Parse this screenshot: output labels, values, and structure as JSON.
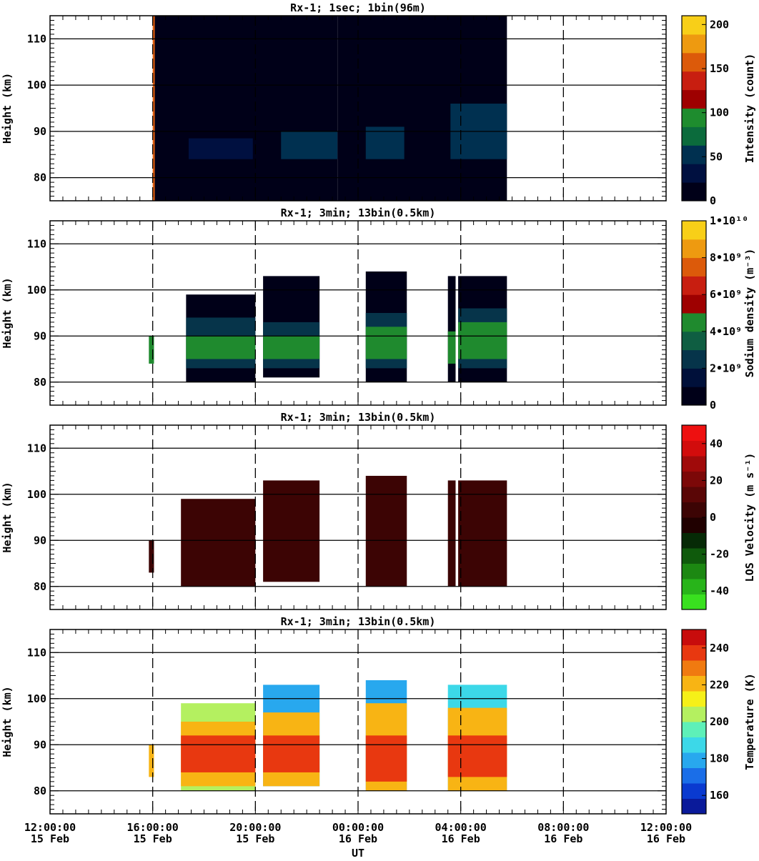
{
  "chart_data": [
    {
      "type": "heatmap",
      "title": "Rx-1;  1sec; 1bin(96m)",
      "ylabel": "Height (km)",
      "ylim": [
        75,
        115
      ],
      "yticks": [
        "80",
        "90",
        "100",
        "110"
      ],
      "colorbar": {
        "label": "Intensity (count)",
        "range": [
          0,
          210
        ],
        "ticks": [
          "0",
          "50",
          "100",
          "150",
          "200"
        ],
        "colors": [
          "#000018",
          "#001040",
          "#003050",
          "#0b6b3c",
          "#1e8c2e",
          "#9e0000",
          "#c81e10",
          "#dc5a0a",
          "#ee9a10",
          "#f8cf18"
        ]
      },
      "segments": [
        {
          "x0": 16.0,
          "x1": 16.08,
          "h0": 75,
          "h1": 115,
          "value": 150
        },
        {
          "x0": 16.08,
          "x1": 23.2,
          "h0": 75,
          "h1": 115,
          "value": 6
        },
        {
          "x0": 17.4,
          "x1": 19.9,
          "h0": 84,
          "h1": 88.5,
          "value": 40
        },
        {
          "x0": 21.0,
          "x1": 23.2,
          "h0": 84,
          "h1": 90,
          "value": 55
        },
        {
          "x0": 23.2,
          "x1": 29.8,
          "h0": 75,
          "h1": 115,
          "value": 6
        },
        {
          "x0": 24.3,
          "x1": 25.8,
          "h0": 84,
          "h1": 91,
          "value": 60
        },
        {
          "x0": 27.6,
          "x1": 29.8,
          "h0": 84,
          "h1": 96,
          "value": 55
        }
      ]
    },
    {
      "type": "heatmap",
      "title": "Rx-1; 3min; 13bin(0.5km)",
      "ylabel": "Height (km)",
      "ylim": [
        75,
        115
      ],
      "yticks": [
        "80",
        "90",
        "100",
        "110"
      ],
      "colorbar": {
        "label": "Sodium density (m⁻³)",
        "range": [
          0,
          10000000000.0
        ],
        "ticks": [
          "0",
          "2•10⁹",
          "4•10⁹",
          "6•10⁹",
          "8•10⁹",
          "1•10¹⁰"
        ],
        "colors": [
          "#000018",
          "#00103a",
          "#06344a",
          "#0f5e42",
          "#1f8a2e",
          "#9e0000",
          "#c81e10",
          "#dc5a0a",
          "#ee9a10",
          "#f8cf18"
        ]
      },
      "segments": [
        {
          "x0": 15.85,
          "x1": 16.05,
          "h0": 84,
          "h1": 90,
          "value": 4500000000.0
        },
        {
          "x0": 17.3,
          "x1": 20.0,
          "h0": 80,
          "h1": 99,
          "value": 600000000.0
        },
        {
          "x0": 17.3,
          "x1": 20.0,
          "h0": 83,
          "h1": 94,
          "value": 2600000000.0
        },
        {
          "x0": 17.3,
          "x1": 20.0,
          "h0": 85,
          "h1": 90,
          "value": 4300000000.0
        },
        {
          "x0": 20.3,
          "x1": 22.5,
          "h0": 81,
          "h1": 103,
          "value": 600000000.0
        },
        {
          "x0": 20.3,
          "x1": 22.5,
          "h0": 83,
          "h1": 93,
          "value": 2600000000.0
        },
        {
          "x0": 20.3,
          "x1": 22.5,
          "h0": 85,
          "h1": 90,
          "value": 4300000000.0
        },
        {
          "x0": 24.3,
          "x1": 25.9,
          "h0": 80,
          "h1": 104,
          "value": 600000000.0
        },
        {
          "x0": 24.3,
          "x1": 25.9,
          "h0": 83,
          "h1": 95,
          "value": 2600000000.0
        },
        {
          "x0": 24.3,
          "x1": 25.9,
          "h0": 85,
          "h1": 92,
          "value": 4300000000.0
        },
        {
          "x0": 27.5,
          "x1": 27.8,
          "h0": 80,
          "h1": 103,
          "value": 600000000.0
        },
        {
          "x0": 27.5,
          "x1": 27.8,
          "h0": 84,
          "h1": 91,
          "value": 4000000000.0
        },
        {
          "x0": 27.9,
          "x1": 29.8,
          "h0": 80,
          "h1": 103,
          "value": 600000000.0
        },
        {
          "x0": 27.9,
          "x1": 29.8,
          "h0": 83,
          "h1": 96,
          "value": 2600000000.0
        },
        {
          "x0": 27.9,
          "x1": 29.8,
          "h0": 85,
          "h1": 93,
          "value": 4300000000.0
        }
      ]
    },
    {
      "type": "heatmap",
      "title": "Rx-1; 3min; 13bin(0.5km)",
      "ylabel": "Height (km)",
      "ylim": [
        75,
        115
      ],
      "yticks": [
        "80",
        "90",
        "100",
        "110"
      ],
      "colorbar": {
        "label": "LOS Velocity (m s⁻¹)",
        "range": [
          -50,
          50
        ],
        "ticks": [
          "-40",
          "-20",
          "0",
          "20",
          "40"
        ],
        "colors": [
          "#39e01f",
          "#28b41a",
          "#1c8812",
          "#0f5a0c",
          "#062a06",
          "#200000",
          "#3c0404",
          "#5a0606",
          "#7c0808",
          "#a00a0a",
          "#d20c0c",
          "#ee1010"
        ]
      },
      "segments": [
        {
          "x0": 15.85,
          "x1": 16.05,
          "h0": 83,
          "h1": 90,
          "value": 2
        },
        {
          "x0": 17.1,
          "x1": 20.0,
          "h0": 80,
          "h1": 99,
          "value": 2
        },
        {
          "x0": 20.3,
          "x1": 22.5,
          "h0": 81,
          "h1": 103,
          "value": 2
        },
        {
          "x0": 24.3,
          "x1": 25.9,
          "h0": 80,
          "h1": 104,
          "value": 2
        },
        {
          "x0": 27.5,
          "x1": 27.8,
          "h0": 80,
          "h1": 103,
          "value": 2
        },
        {
          "x0": 27.9,
          "x1": 29.8,
          "h0": 80,
          "h1": 103,
          "value": 2
        }
      ]
    },
    {
      "type": "heatmap",
      "title": "Rx-1; 3min; 13bin(0.5km)",
      "ylabel": "Height (km)",
      "ylim": [
        75,
        115
      ],
      "yticks": [
        "80",
        "90",
        "100",
        "110"
      ],
      "colorbar": {
        "label": "Temperature (K)",
        "range": [
          150,
          250
        ],
        "ticks": [
          "160",
          "180",
          "200",
          "220",
          "240"
        ],
        "colors": [
          "#0a1a9a",
          "#0a3ad0",
          "#1a6ee8",
          "#28a8ee",
          "#3cd8e8",
          "#5ef0b8",
          "#b4f060",
          "#f6f018",
          "#f8b414",
          "#f07a10",
          "#e83810",
          "#c80c0c"
        ]
      },
      "segments": [
        {
          "x0": 15.85,
          "x1": 16.05,
          "h0": 83,
          "h1": 90,
          "value": 222
        },
        {
          "x0": 17.1,
          "x1": 20.0,
          "h0": 80,
          "h1": 99,
          "value": 208
        },
        {
          "x0": 17.1,
          "x1": 20.0,
          "h0": 81,
          "h1": 95,
          "value": 222
        },
        {
          "x0": 17.1,
          "x1": 20.0,
          "h0": 84,
          "h1": 92,
          "value": 236
        },
        {
          "x0": 20.3,
          "x1": 22.5,
          "h0": 81,
          "h1": 103,
          "value": 182
        },
        {
          "x0": 20.3,
          "x1": 22.5,
          "h0": 81,
          "h1": 97,
          "value": 222
        },
        {
          "x0": 20.3,
          "x1": 22.5,
          "h0": 84,
          "h1": 92,
          "value": 236
        },
        {
          "x0": 24.3,
          "x1": 25.9,
          "h0": 80,
          "h1": 104,
          "value": 182
        },
        {
          "x0": 24.3,
          "x1": 25.9,
          "h0": 80,
          "h1": 99,
          "value": 222
        },
        {
          "x0": 24.3,
          "x1": 25.9,
          "h0": 82,
          "h1": 92,
          "value": 240
        },
        {
          "x0": 27.5,
          "x1": 29.8,
          "h0": 80,
          "h1": 103,
          "value": 186
        },
        {
          "x0": 27.5,
          "x1": 29.8,
          "h0": 80,
          "h1": 98,
          "value": 222
        },
        {
          "x0": 27.5,
          "x1": 29.8,
          "h0": 83,
          "h1": 92,
          "value": 240
        }
      ]
    }
  ],
  "x_axis": {
    "xlim": [
      12,
      36
    ],
    "label": "UT",
    "ticks": [
      {
        "x": 12,
        "time": "12:00:00",
        "date": "15 Feb"
      },
      {
        "x": 16,
        "time": "16:00:00",
        "date": "15 Feb"
      },
      {
        "x": 20,
        "time": "20:00:00",
        "date": "15 Feb"
      },
      {
        "x": 24,
        "time": "00:00:00",
        "date": "16 Feb"
      },
      {
        "x": 28,
        "time": "04:00:00",
        "date": "16 Feb"
      },
      {
        "x": 32,
        "time": "08:00:00",
        "date": "16 Feb"
      },
      {
        "x": 36,
        "time": "12:00:00",
        "date": "16 Feb"
      }
    ]
  }
}
